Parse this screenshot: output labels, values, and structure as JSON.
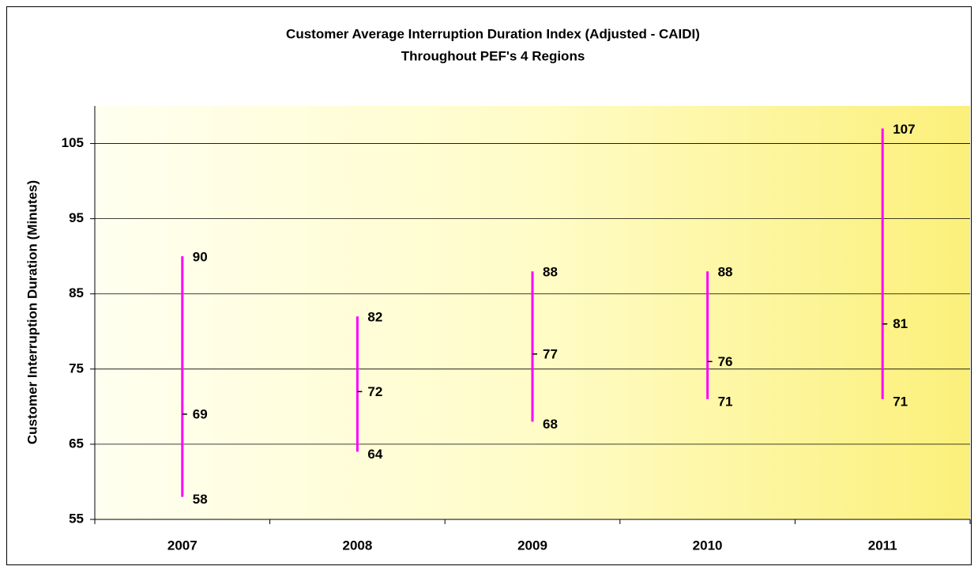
{
  "chart_data": {
    "type": "hilo",
    "title": "Customer Average Interruption Duration Index (Adjusted - CAIDI)",
    "subtitle": "Throughout PEF's 4 Regions",
    "y_label": "Customer Interruption Duration (Minutes)",
    "categories": [
      "2007",
      "2008",
      "2009",
      "2010",
      "2011"
    ],
    "high": [
      90,
      82,
      88,
      88,
      107
    ],
    "average": [
      69,
      72,
      77,
      76,
      81
    ],
    "low": [
      58,
      64,
      68,
      71,
      71
    ],
    "color": "#ff00ff",
    "ylim": [
      55,
      110
    ],
    "yticks": [
      55,
      65,
      75,
      85,
      95,
      105
    ],
    "grid": true
  }
}
